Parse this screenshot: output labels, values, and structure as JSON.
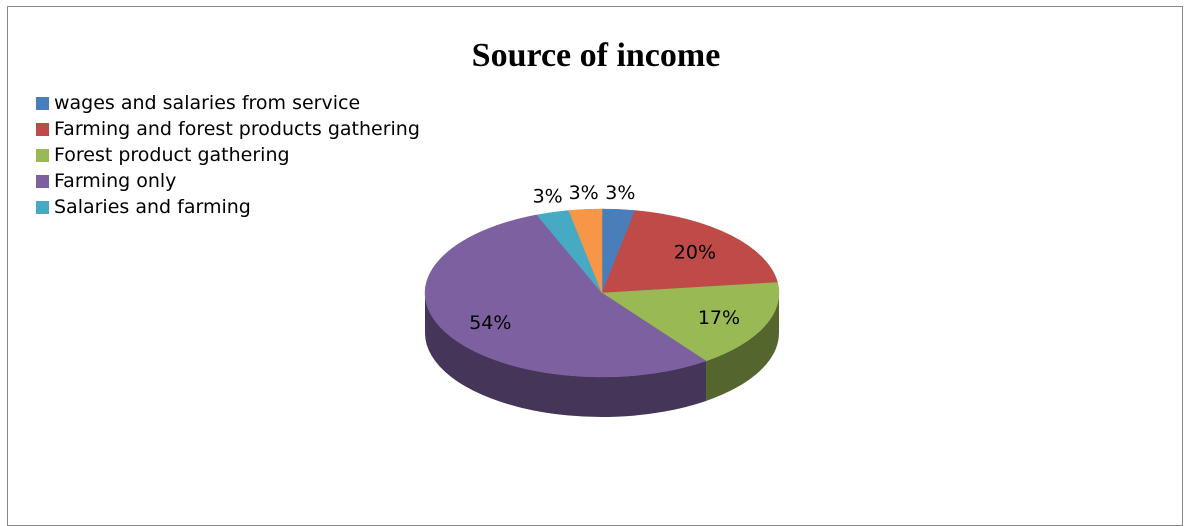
{
  "chart_data": {
    "type": "pie",
    "title": "Source of income",
    "categories": [
      "wages and salaries from service",
      "Farming and forest products gathering",
      "Forest product gathering",
      "Farming only",
      "Salaries and farming",
      ""
    ],
    "values": [
      3,
      20,
      17,
      54,
      3,
      3
    ],
    "data_labels": [
      "3%",
      "20%",
      "17%",
      "54%",
      "3%",
      "3%"
    ],
    "colors": [
      "#4A7EBB",
      "#BE4B48",
      "#98B954",
      "#7D60A0",
      "#46AAC5",
      "#F79646"
    ],
    "legend_position": "top-left",
    "three_d": true
  }
}
